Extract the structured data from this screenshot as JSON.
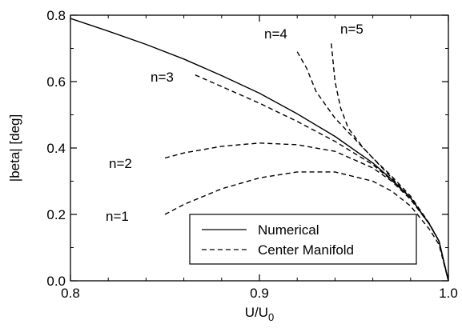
{
  "chart_data": {
    "type": "line",
    "xlabel_main": "U/U",
    "xlabel_sub": "0",
    "ylabel": "|beta| [deg]",
    "xlim": [
      0.8,
      1.0
    ],
    "ylim": [
      0.0,
      0.8
    ],
    "xticks": [
      "0.8",
      "0.9",
      "1.0"
    ],
    "yticks": [
      "0.0",
      "0.2",
      "0.4",
      "0.6",
      "0.8"
    ],
    "legend_position": "bottom-right",
    "series": [
      {
        "name": "Numerical",
        "style": "solid",
        "x": [
          0.8,
          0.82,
          0.84,
          0.86,
          0.88,
          0.9,
          0.92,
          0.94,
          0.96,
          0.97,
          0.98,
          0.99,
          0.995,
          1.0
        ],
        "y": [
          0.79,
          0.752,
          0.712,
          0.668,
          0.618,
          0.565,
          0.503,
          0.435,
          0.355,
          0.305,
          0.25,
          0.17,
          0.12,
          0.0
        ]
      },
      {
        "name": "Center Manifold",
        "style": "dashed",
        "annotation": "n=1",
        "x": [
          0.85,
          0.86,
          0.88,
          0.9,
          0.92,
          0.94,
          0.96,
          0.97,
          0.98,
          0.99,
          0.995,
          1.0
        ],
        "y": [
          0.2,
          0.23,
          0.277,
          0.31,
          0.328,
          0.328,
          0.3,
          0.27,
          0.225,
          0.155,
          0.11,
          0.0
        ]
      },
      {
        "name": "Center Manifold",
        "style": "dashed",
        "annotation": "n=2",
        "x": [
          0.85,
          0.86,
          0.88,
          0.9,
          0.92,
          0.94,
          0.96,
          0.97,
          0.98,
          0.99,
          0.995,
          1.0
        ],
        "y": [
          0.37,
          0.385,
          0.405,
          0.415,
          0.41,
          0.39,
          0.34,
          0.3,
          0.245,
          0.17,
          0.12,
          0.0
        ]
      },
      {
        "name": "Center Manifold",
        "style": "dashed",
        "annotation": "n=3",
        "x": [
          0.866,
          0.88,
          0.9,
          0.92,
          0.94,
          0.96,
          0.97,
          0.98,
          0.99,
          0.995,
          1.0
        ],
        "y": [
          0.62,
          0.585,
          0.535,
          0.48,
          0.42,
          0.35,
          0.303,
          0.25,
          0.17,
          0.12,
          0.0
        ]
      },
      {
        "name": "Center Manifold",
        "style": "dashed",
        "annotation": "n=4",
        "x": [
          0.92,
          0.925,
          0.93,
          0.94,
          0.95,
          0.96,
          0.97,
          0.98,
          0.99,
          0.995,
          1.0
        ],
        "y": [
          0.69,
          0.64,
          0.57,
          0.49,
          0.43,
          0.37,
          0.31,
          0.25,
          0.17,
          0.12,
          0.0
        ]
      },
      {
        "name": "Center Manifold",
        "style": "dashed",
        "annotation": "n=5",
        "x": [
          0.938,
          0.939,
          0.94,
          0.943,
          0.947,
          0.955,
          0.96,
          0.97,
          0.98,
          0.99,
          0.995,
          1.0
        ],
        "y": [
          0.715,
          0.66,
          0.6,
          0.52,
          0.46,
          0.4,
          0.37,
          0.315,
          0.255,
          0.172,
          0.12,
          0.0
        ]
      }
    ],
    "annotations": [
      "n=1",
      "n=2",
      "n=3",
      "n=4",
      "n=5"
    ],
    "legend": [
      {
        "label": "Numerical",
        "style": "solid"
      },
      {
        "label": "Center Manifold",
        "style": "dashed"
      }
    ]
  }
}
